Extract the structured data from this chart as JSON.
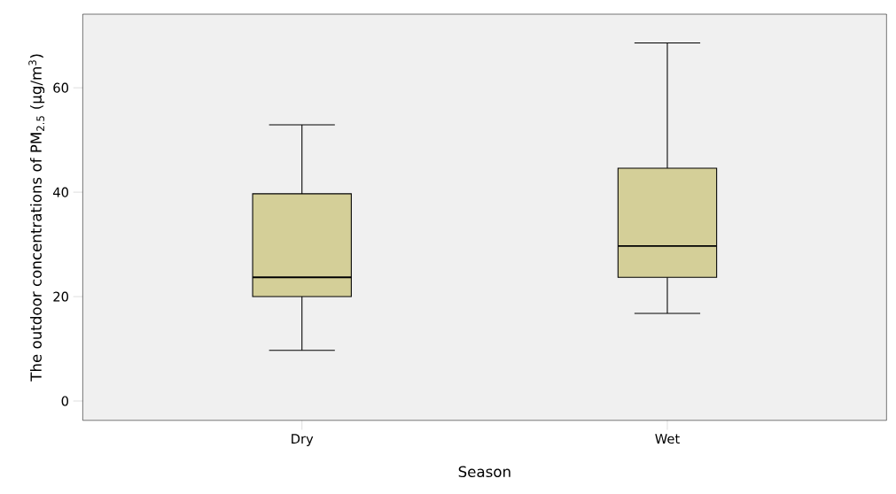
{
  "chart_data": {
    "type": "box",
    "xlabel": "Season",
    "ylabel": "The outdoor concentrations of PM$_{2.5}$ (μg/m$^{3}$)",
    "categories": [
      "Dry",
      "Wet"
    ],
    "color": "#d4cf98",
    "boxes": [
      {
        "low": 9.7,
        "q1": 20.0,
        "median": 23.7,
        "q3": 39.7,
        "high": 52.9
      },
      {
        "low": 16.8,
        "q1": 23.7,
        "median": 29.7,
        "q3": 44.6,
        "high": 68.6
      }
    ],
    "ylim": [
      -3.7,
      74.1
    ],
    "yticks": [
      0,
      20,
      40,
      60
    ]
  }
}
